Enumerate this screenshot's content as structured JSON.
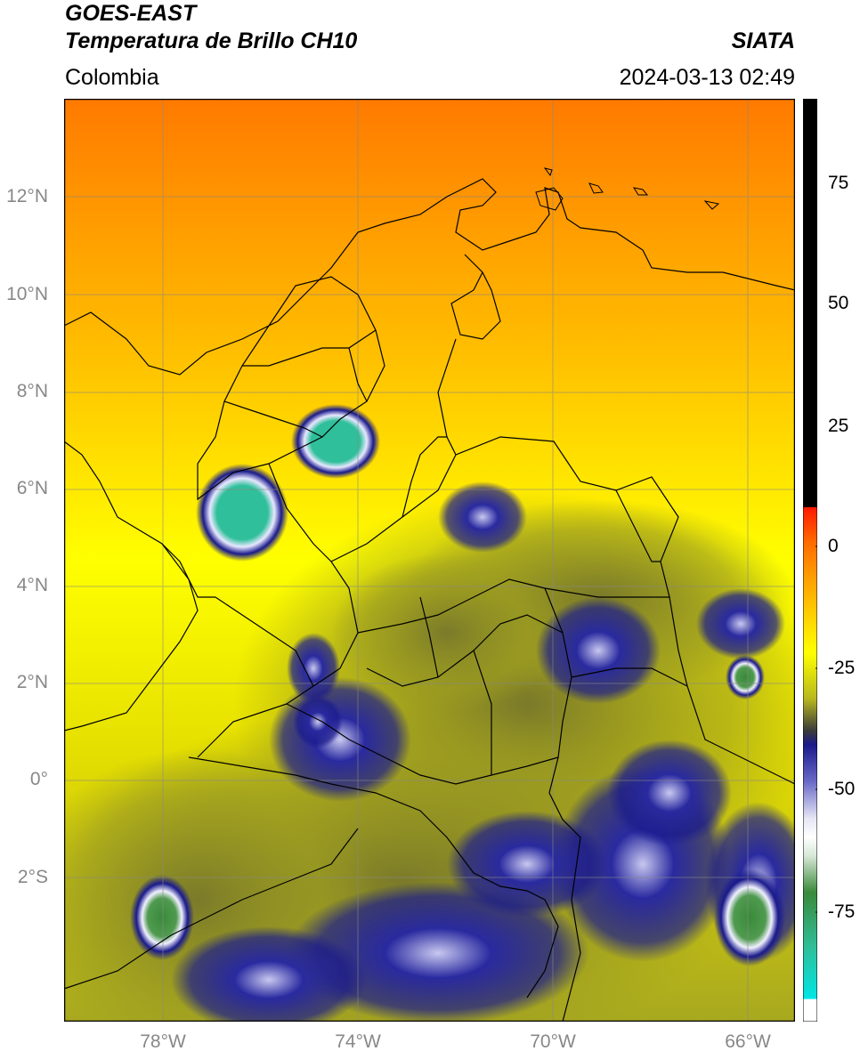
{
  "header": {
    "satellite": "GOES-EAST",
    "product": "Temperatura de Brillo CH10",
    "region": "Colombia",
    "agency": "SIATA",
    "timestamp": "2024-03-13 02:49"
  },
  "map": {
    "lat_labels": [
      "12°N",
      "10°N",
      "8°N",
      "6°N",
      "4°N",
      "2°N",
      "0°",
      "2°S"
    ],
    "lon_labels": [
      "78°W",
      "74°W",
      "70°W",
      "66°W"
    ]
  },
  "colorbar": {
    "ticks": [
      "75",
      "50",
      "25",
      "0",
      "-25",
      "-50",
      "-75"
    ],
    "colors": {
      "extreme_high": "#000000",
      "red": "#ff1a00",
      "orange": "#ff8c00",
      "yellow": "#ffff00",
      "olive": "#8a8a1e",
      "navy": "#1a1a8c",
      "white": "#ffffff",
      "green": "#3a8a3a",
      "cyan": "#00e5e5"
    }
  }
}
